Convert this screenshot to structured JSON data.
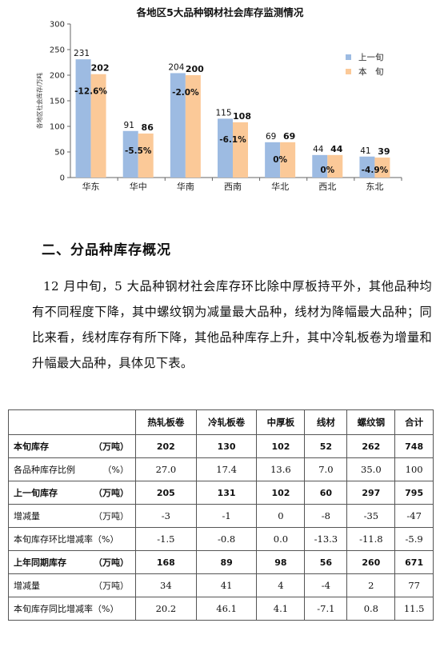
{
  "chart_data": {
    "type": "bar",
    "title": "各地区5大品种钢材社会库存监测情况",
    "ylabel": "各地区社会库存/万吨",
    "ylim": [
      0,
      300
    ],
    "yticks": [
      "0",
      "50",
      "100",
      "150",
      "200",
      "250",
      "300"
    ],
    "categories": [
      "华东",
      "华中",
      "华南",
      "西南",
      "华北",
      "西北",
      "东北"
    ],
    "series": [
      {
        "name": "上一旬",
        "values": [
          231,
          91,
          204,
          115,
          69,
          44,
          41
        ],
        "color": "#9dbbe2"
      },
      {
        "name": "本　旬",
        "values": [
          202,
          86,
          200,
          108,
          69,
          44,
          39
        ],
        "color": "#fbc998"
      }
    ],
    "change_labels": [
      "-12.6%",
      "-5.5%",
      "-2.0%",
      "-6.1%",
      "0%",
      "0%",
      "-4.9%"
    ],
    "legend_position": "right",
    "grid": false
  },
  "section_heading": "二、分品种库存概况",
  "paragraph": "12 月中旬，5 大品种钢材社会库存环比除中厚板持平外，其他品种均有不同程度下降，其中螺纹钢为减量最大品种，线材为降幅最大品种；同比来看，线材库存有所下降，其他品种库存上升，其中冷轧板卷为增量和升幅最大品种，具体见下表。",
  "table": {
    "headers": [
      "",
      "热轧板卷",
      "冷轧板卷",
      "中厚板",
      "线材",
      "螺纹钢",
      "合计"
    ],
    "rows": [
      {
        "label": "本旬库存",
        "unit": "（万吨）",
        "bold": true,
        "cells": [
          "202",
          "130",
          "102",
          "52",
          "262",
          "748"
        ]
      },
      {
        "label": "各品种库存比例",
        "unit": "（%）",
        "bold": false,
        "cells": [
          "27.0",
          "17.4",
          "13.6",
          "7.0",
          "35.0",
          "100"
        ]
      },
      {
        "label": "上一旬库存",
        "unit": "（万吨）",
        "bold": true,
        "cells": [
          "205",
          "131",
          "102",
          "60",
          "297",
          "795"
        ]
      },
      {
        "label": "增减量",
        "unit": "（万吨）",
        "bold": false,
        "cells": [
          "-3",
          "-1",
          "0",
          "-8",
          "-35",
          "-47"
        ]
      },
      {
        "label": "本旬库存环比增减率（%）",
        "unit": "",
        "bold": false,
        "cells": [
          "-1.5",
          "-0.8",
          "0.0",
          "-13.3",
          "-11.8",
          "-5.9"
        ]
      },
      {
        "label": "上年同期库存",
        "unit": "（万吨）",
        "bold": true,
        "cells": [
          "168",
          "89",
          "98",
          "56",
          "260",
          "671"
        ]
      },
      {
        "label": "增减量",
        "unit": "（万吨）",
        "bold": false,
        "cells": [
          "34",
          "41",
          "4",
          "-4",
          "2",
          "77"
        ]
      },
      {
        "label": "本旬库存同比增减率（%）",
        "unit": "",
        "bold": false,
        "cells": [
          "20.2",
          "46.1",
          "4.1",
          "-7.1",
          "0.8",
          "11.5"
        ]
      }
    ]
  }
}
